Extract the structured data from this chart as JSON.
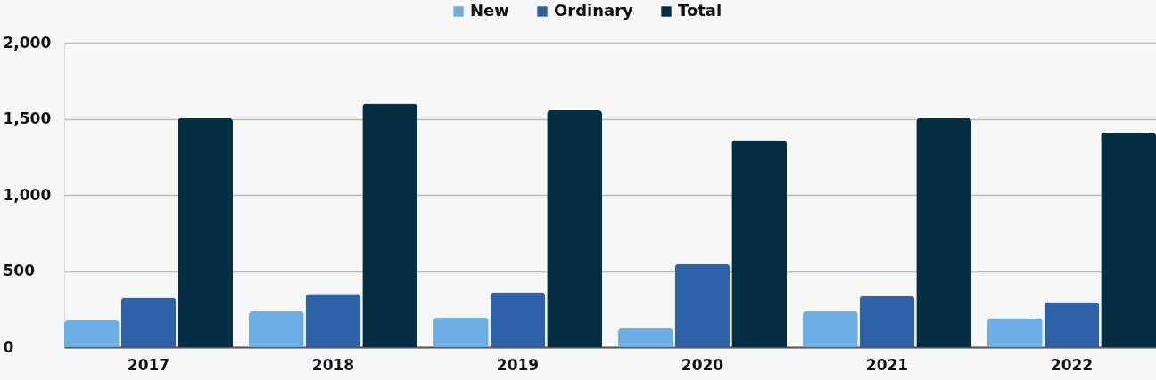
{
  "chart_data": {
    "type": "bar",
    "categories": [
      "2017",
      "2018",
      "2019",
      "2020",
      "2021",
      "2022"
    ],
    "series": [
      {
        "name": "New",
        "color": "#6cafe6",
        "values": [
          175,
          235,
          195,
          125,
          235,
          190
        ]
      },
      {
        "name": "Ordinary",
        "color": "#2e62a6",
        "values": [
          325,
          350,
          360,
          545,
          335,
          295
        ]
      },
      {
        "name": "Total",
        "color": "#042e44",
        "values": [
          1505,
          1600,
          1555,
          1360,
          1505,
          1410
        ]
      }
    ],
    "ylim": [
      0,
      2000
    ],
    "yticks": [
      0,
      500,
      {
        "value": 1000,
        "label": "1,000"
      },
      {
        "value": 1500,
        "label": "1,500"
      },
      {
        "value": 2000,
        "label": "2,000"
      }
    ],
    "grid": "y",
    "legend": "top"
  }
}
